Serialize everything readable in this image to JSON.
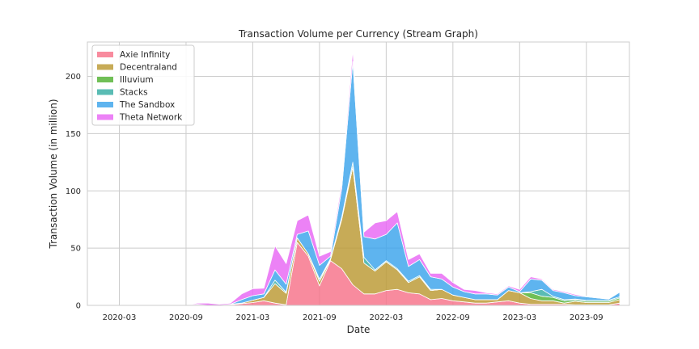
{
  "chart_data": {
    "type": "area",
    "stacked": true,
    "title": "Transaction Volume per Currency (Stream Graph)",
    "xlabel": "Date",
    "ylabel": "Transaction Volume (in million)",
    "ylim": [
      0,
      230
    ],
    "yticks": [
      0,
      50,
      100,
      150,
      200
    ],
    "xticks": [
      "2020-03",
      "2020-09",
      "2021-03",
      "2021-09",
      "2022-03",
      "2022-09",
      "2023-03",
      "2023-09"
    ],
    "grid": true,
    "legend_position": "top-left",
    "x": [
      "2020-01",
      "2020-02",
      "2020-03",
      "2020-04",
      "2020-05",
      "2020-06",
      "2020-07",
      "2020-08",
      "2020-09",
      "2020-10",
      "2020-11",
      "2020-12",
      "2021-01",
      "2021-02",
      "2021-03",
      "2021-04",
      "2021-05",
      "2021-06",
      "2021-07",
      "2021-08",
      "2021-09",
      "2021-10",
      "2021-11",
      "2021-12",
      "2022-01",
      "2022-02",
      "2022-03",
      "2022-04",
      "2022-05",
      "2022-06",
      "2022-07",
      "2022-08",
      "2022-09",
      "2022-10",
      "2022-11",
      "2022-12",
      "2023-01",
      "2023-02",
      "2023-03",
      "2023-04",
      "2023-05",
      "2023-06",
      "2023-07",
      "2023-08",
      "2023-09",
      "2023-10",
      "2023-11",
      "2023-12"
    ],
    "series": [
      {
        "name": "Axie Infinity",
        "color": "#f77189",
        "values": [
          0,
          0,
          0,
          0,
          0,
          0,
          0,
          0,
          0,
          0.5,
          0,
          0,
          0.5,
          1.5,
          2.5,
          4,
          2,
          0.5,
          55,
          43,
          17,
          39,
          32,
          18,
          10,
          10,
          13,
          14,
          11,
          10,
          5,
          6,
          4,
          3,
          2,
          2,
          3,
          4,
          2,
          1,
          1,
          1,
          1,
          0.5,
          0.5,
          0.5,
          0.5,
          2
        ]
      },
      {
        "name": "Decentraland",
        "color": "#bb9832",
        "values": [
          0,
          0,
          0,
          0,
          0,
          0,
          0,
          0,
          0,
          0.5,
          0,
          0,
          0.5,
          0.5,
          2,
          3,
          17,
          10,
          4,
          2,
          4,
          1,
          43,
          103,
          27,
          20,
          25,
          17,
          9,
          15,
          8,
          8,
          5,
          4,
          3,
          3,
          2,
          9,
          9,
          5,
          3,
          3,
          1,
          3,
          2,
          2,
          2,
          3
        ]
      },
      {
        "name": "Illuvium",
        "color": "#50b131",
        "values": [
          0,
          0,
          0,
          0,
          0,
          0,
          0,
          0,
          0,
          0,
          0,
          0,
          0,
          0,
          0,
          0,
          0,
          0,
          0,
          0,
          0,
          1,
          2,
          0,
          0,
          0,
          0,
          0,
          0,
          0,
          0,
          0,
          0,
          0,
          0,
          0,
          0,
          0,
          0,
          5,
          4,
          3,
          2,
          1,
          1,
          1,
          1,
          1.5
        ]
      },
      {
        "name": "Stacks",
        "color": "#36ada4",
        "values": [
          0,
          0,
          0,
          0,
          0,
          0,
          0,
          0,
          0,
          0,
          0,
          0,
          0,
          0,
          0,
          0,
          3,
          1,
          0,
          0,
          2,
          0,
          0,
          4,
          5,
          1,
          1,
          1,
          1,
          1,
          1,
          0,
          0,
          0,
          0,
          0,
          0,
          0,
          0,
          1,
          6,
          1,
          1,
          1,
          1,
          1,
          1,
          1
        ]
      },
      {
        "name": "The Sandbox",
        "color": "#3ba3ec",
        "values": [
          0,
          0,
          0,
          0,
          0,
          0,
          0,
          0,
          0,
          0,
          0,
          0,
          0,
          3,
          4,
          3,
          9,
          7,
          3,
          20,
          12,
          2,
          25,
          88,
          18,
          27,
          23,
          40,
          13,
          14,
          11,
          9,
          7,
          5,
          5,
          5,
          4,
          3,
          1,
          11,
          8,
          5,
          6,
          3,
          3,
          2,
          1,
          4
        ]
      },
      {
        "name": "Theta Network",
        "color": "#e866f4",
        "values": [
          0,
          0,
          0,
          0,
          0,
          0,
          0,
          0,
          0,
          1,
          2,
          1,
          1,
          5,
          6,
          5,
          21,
          18,
          12,
          14,
          8,
          4,
          5,
          10,
          4,
          14,
          12,
          10,
          6,
          5,
          3,
          5,
          4,
          2,
          3,
          1,
          1,
          1,
          2,
          2,
          1,
          1,
          1,
          1,
          0.5,
          0.5,
          0.5,
          0.5
        ]
      }
    ]
  }
}
